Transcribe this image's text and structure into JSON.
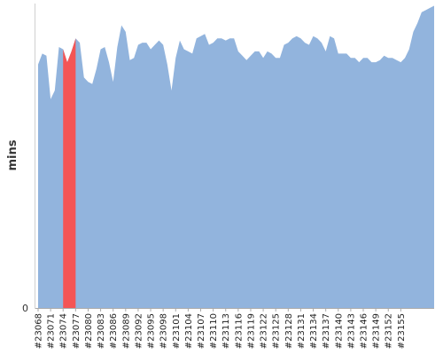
{
  "chart_data": {
    "type": "area",
    "ylabel": "mins",
    "xlabel": "",
    "title": "",
    "ylim": [
      0,
      140
    ],
    "ytick_labels": [
      "0"
    ],
    "first_build": 23068,
    "x_tick_labels": [
      "#23068",
      "#23071",
      "#23074",
      "#23077",
      "#23080",
      "#23083",
      "#23086",
      "#23089",
      "#23092",
      "#23095",
      "#23098",
      "#23101",
      "#23104",
      "#23107",
      "#23110",
      "#23113",
      "#23116",
      "#23119",
      "#23122",
      "#23125",
      "#23128",
      "#23131",
      "#23134",
      "#23137",
      "#23140",
      "#23143",
      "#23146",
      "#23149",
      "#23152",
      "#23155"
    ],
    "values": [
      112,
      117,
      116,
      96,
      100,
      120,
      119,
      113,
      118,
      124,
      122,
      106,
      104,
      103,
      110,
      119,
      120,
      113,
      104,
      120,
      130,
      127,
      114,
      115,
      121,
      122,
      122,
      119,
      121,
      123,
      121,
      112,
      100,
      115,
      123,
      119,
      118,
      117,
      124,
      125,
      126,
      121,
      122,
      124,
      124,
      123,
      124,
      124,
      118,
      116,
      114,
      116,
      118,
      118,
      115,
      118,
      117,
      115,
      115,
      121,
      122,
      124,
      125,
      124,
      122,
      121,
      125,
      124,
      122,
      118,
      125,
      124,
      117,
      117,
      117,
      115,
      115,
      113,
      115,
      115,
      113,
      113,
      114,
      116,
      115,
      115,
      114,
      113,
      115,
      119,
      127,
      131,
      136,
      137,
      138,
      139
    ],
    "highlight_range": [
      23074,
      23077
    ],
    "colors": {
      "area": "#92b4dd",
      "highlight": "#f45555"
    }
  }
}
